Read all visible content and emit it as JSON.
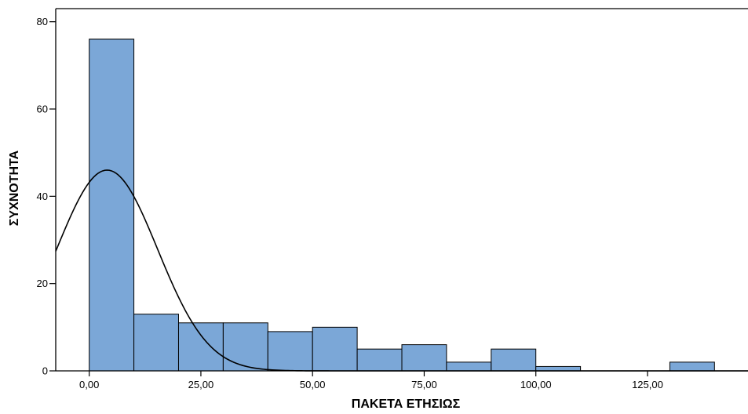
{
  "chart_data": {
    "type": "bar",
    "subtype": "histogram",
    "xlabel": "ΠΑΚΕΤΑ ΕΤΗΣΙΩΣ",
    "ylabel": "ΣΥΧΝΟΤΗΤΑ",
    "xlim": [
      -7.5,
      147.5
    ],
    "ylim": [
      0,
      83
    ],
    "xticks": [
      0,
      25,
      50,
      75,
      100,
      125
    ],
    "xtick_labels": [
      "0,00",
      "25,00",
      "50,00",
      "75,00",
      "100,00",
      "125,00"
    ],
    "yticks": [
      0,
      20,
      40,
      60,
      80
    ],
    "ytick_labels": [
      "0",
      "20",
      "40",
      "60",
      "80"
    ],
    "bin_width": 10,
    "bins": [
      {
        "start": 0,
        "end": 10,
        "count": 76
      },
      {
        "start": 10,
        "end": 20,
        "count": 13
      },
      {
        "start": 20,
        "end": 30,
        "count": 11
      },
      {
        "start": 30,
        "end": 40,
        "count": 11
      },
      {
        "start": 40,
        "end": 50,
        "count": 9
      },
      {
        "start": 50,
        "end": 60,
        "count": 10
      },
      {
        "start": 60,
        "end": 70,
        "count": 5
      },
      {
        "start": 70,
        "end": 80,
        "count": 6
      },
      {
        "start": 80,
        "end": 90,
        "count": 2
      },
      {
        "start": 90,
        "end": 100,
        "count": 5
      },
      {
        "start": 100,
        "end": 110,
        "count": 1
      },
      {
        "start": 110,
        "end": 120,
        "count": 0
      },
      {
        "start": 120,
        "end": 130,
        "count": 0
      },
      {
        "start": 130,
        "end": 140,
        "count": 2
      }
    ],
    "normal_curve": {
      "peak_x": 4,
      "peak_y": 46,
      "sd": 11.3
    },
    "grid": false,
    "bar_color": "#7ba7d7",
    "bar_edge_color": "#000000",
    "curve_color": "#000000"
  }
}
